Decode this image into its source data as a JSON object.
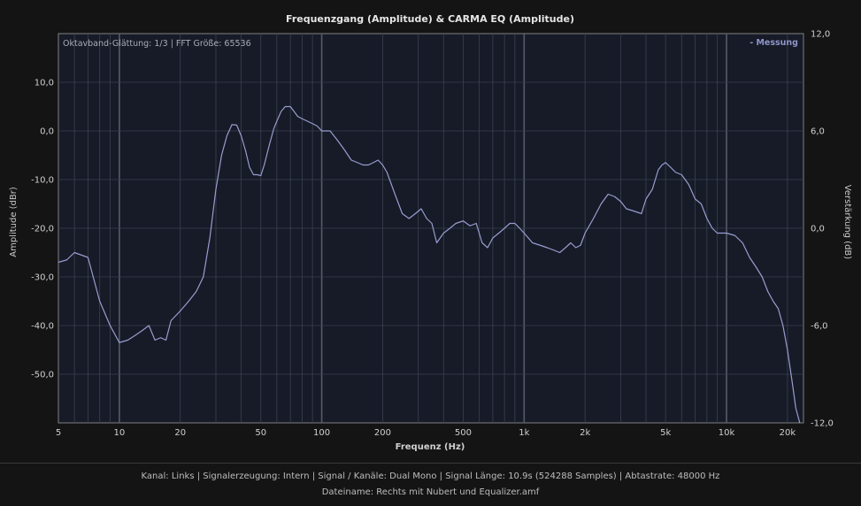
{
  "footer": {
    "info": "Kanal: Links  |  Signalerzeugung: Intern  |  Signal / Kanäle: Dual Mono  |  Signal Länge: 10.9s (524288 Samples)  |  Abtastrate: 48000 Hz",
    "file": "Dateiname: Rechts mit Nubert und Equalizer.amf"
  },
  "colors": {
    "background": "#141414",
    "plot_background": "#161b27",
    "grid": "#3b4150",
    "trace": "#9a9cd0",
    "legend": "#8f95c8",
    "text": "#d0d0d0"
  },
  "chart_data": {
    "type": "line",
    "title": "Frequenzgang (Amplitude) & CARMA EQ (Amplitude)",
    "xlabel": "Frequenz (Hz)",
    "ylabel": "Amplitude (dBr)",
    "y2label": "Verstärkung (dB)",
    "x_scale": "log",
    "xlim": [
      5,
      24000
    ],
    "ylim": [
      -60,
      20
    ],
    "y2lim": [
      -12,
      12
    ],
    "x_ticks": [
      5,
      10,
      20,
      50,
      100,
      200,
      500,
      1000,
      2000,
      5000,
      10000,
      20000
    ],
    "x_tick_labels": [
      "5",
      "10",
      "20",
      "50",
      "100",
      "200",
      "500",
      "1k",
      "2k",
      "5k",
      "10k",
      "20k"
    ],
    "y_ticks": [
      10,
      0,
      -10,
      -20,
      -30,
      -40,
      -50
    ],
    "y_tick_labels": [
      "10,0",
      "0,0",
      "-10,0",
      "-20,0",
      "-30,0",
      "-40,0",
      "-50,0"
    ],
    "y2_ticks": [
      12,
      6,
      0,
      -6,
      -12
    ],
    "y2_tick_labels": [
      "12,0",
      "6,0",
      "0,0",
      "-6,0",
      "-12,0"
    ],
    "annotation": "Oktavband-Glättung: 1/3 | FFT Größe: 65536",
    "grid": true,
    "legend_position": "top-right",
    "series": [
      {
        "name": "Messung",
        "x": [
          5,
          5.5,
          6,
          7,
          8,
          9,
          10,
          11,
          12,
          13,
          14,
          15,
          16,
          17,
          18,
          20,
          22,
          24,
          26,
          28,
          30,
          32,
          34,
          36,
          38,
          40,
          42,
          44,
          46,
          48,
          50,
          52,
          55,
          58,
          60,
          63,
          66,
          70,
          73,
          76,
          80,
          85,
          90,
          95,
          100,
          105,
          110,
          120,
          130,
          140,
          150,
          160,
          170,
          180,
          190,
          200,
          210,
          230,
          250,
          270,
          290,
          310,
          330,
          350,
          370,
          400,
          430,
          460,
          500,
          540,
          580,
          620,
          660,
          700,
          750,
          800,
          850,
          900,
          950,
          1000,
          1100,
          1200,
          1300,
          1400,
          1500,
          1600,
          1700,
          1800,
          1900,
          2000,
          2200,
          2400,
          2600,
          2800,
          3000,
          3200,
          3500,
          3800,
          4000,
          4300,
          4600,
          4800,
          5000,
          5300,
          5600,
          6000,
          6500,
          7000,
          7500,
          8000,
          8500,
          9000,
          9500,
          10000,
          11000,
          12000,
          13000,
          14000,
          15000,
          16000,
          17000,
          18000,
          19000,
          20000,
          21000,
          22000,
          23000
        ],
        "y": [
          -27,
          -26.5,
          -25,
          -26,
          -35,
          -40,
          -43.5,
          -43,
          -42,
          -41,
          -40,
          -43,
          -42.5,
          -43,
          -39,
          -37,
          -35,
          -33,
          -30,
          -22,
          -12,
          -5,
          -1,
          1.3,
          1.2,
          -1,
          -4,
          -7.5,
          -9,
          -9,
          -9.2,
          -7,
          -3,
          0.5,
          2,
          4,
          5,
          5,
          4,
          3,
          2.5,
          2,
          1.5,
          1,
          0,
          0,
          0,
          -2,
          -4,
          -6,
          -6.5,
          -7,
          -7,
          -6.5,
          -6,
          -7,
          -8.5,
          -13,
          -17,
          -18,
          -17,
          -16,
          -18,
          -19,
          -23,
          -21,
          -20,
          -19,
          -18.5,
          -19.5,
          -19,
          -23,
          -24,
          -22,
          -21,
          -20,
          -19,
          -19,
          -20,
          -21,
          -23,
          -23.5,
          -24,
          -24.5,
          -25,
          -24,
          -23,
          -24,
          -23.5,
          -21,
          -18,
          -15,
          -13,
          -13.5,
          -14.5,
          -16,
          -16.5,
          -17,
          -14,
          -12,
          -8,
          -7,
          -6.5,
          -7.5,
          -8.5,
          -9,
          -11,
          -14,
          -15,
          -18,
          -20,
          -21,
          -21,
          -21,
          -21.5,
          -23,
          -26,
          -28,
          -30,
          -33,
          -35,
          -36.5,
          -40,
          -45,
          -51,
          -57,
          -60
        ]
      }
    ]
  }
}
